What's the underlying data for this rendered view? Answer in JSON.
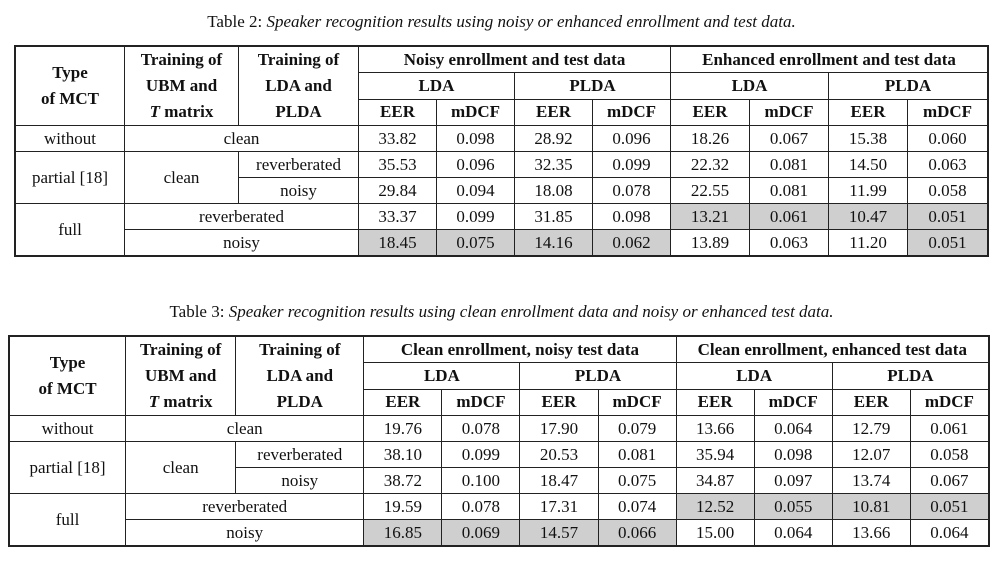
{
  "table2": {
    "caption_prefix": "Table 2:",
    "caption_text": "Speaker recognition results using noisy or enhanced enrollment and test data.",
    "headers": {
      "type_l1": "Type",
      "type_l2": "of MCT",
      "ubm_l1": "Training of",
      "ubm_l2": "UBM and",
      "ubm_l3_var": "T",
      "ubm_l3_rest": " matrix",
      "lda_l1": "Training of",
      "lda_l2": "LDA and",
      "lda_l3": "PLDA",
      "group1": "Noisy enrollment and test data",
      "group2": "Enhanced enrollment and test data",
      "lda": "LDA",
      "plda": "PLDA",
      "eer": "EER",
      "mdcf": "mDCF"
    },
    "rows": {
      "without": "without",
      "partial": "partial [18]",
      "full": "full",
      "clean": "clean",
      "reverberated": "reverberated",
      "noisy": "noisy"
    },
    "values": [
      [
        "33.82",
        "0.098",
        "28.92",
        "0.096",
        "18.26",
        "0.067",
        "15.38",
        "0.060"
      ],
      [
        "35.53",
        "0.096",
        "32.35",
        "0.099",
        "22.32",
        "0.081",
        "14.50",
        "0.063"
      ],
      [
        "29.84",
        "0.094",
        "18.08",
        "0.078",
        "22.55",
        "0.081",
        "11.99",
        "0.058"
      ],
      [
        "33.37",
        "0.099",
        "31.85",
        "0.098",
        "13.21",
        "0.061",
        "10.47",
        "0.051"
      ],
      [
        "18.45",
        "0.075",
        "14.16",
        "0.062",
        "13.89",
        "0.063",
        "11.20",
        "0.051"
      ]
    ]
  },
  "table3": {
    "caption_prefix": "Table 3:",
    "caption_text": "Speaker recognition results using clean enrollment data and noisy or enhanced test data.",
    "headers": {
      "type_l1": "Type",
      "type_l2": "of MCT",
      "ubm_l1": "Training of",
      "ubm_l2": "UBM and",
      "ubm_l3_var": "T",
      "ubm_l3_rest": " matrix",
      "lda_l1": "Training of",
      "lda_l2": "LDA and",
      "lda_l3": "PLDA",
      "group1": "Clean enrollment, noisy test data",
      "group2": "Clean enrollment, enhanced test data",
      "lda": "LDA",
      "plda": "PLDA",
      "eer": "EER",
      "mdcf": "mDCF"
    },
    "rows": {
      "without": "without",
      "partial": "partial [18]",
      "full": "full",
      "clean": "clean",
      "reverberated": "reverberated",
      "noisy": "noisy"
    },
    "values": [
      [
        "19.76",
        "0.078",
        "17.90",
        "0.079",
        "13.66",
        "0.064",
        "12.79",
        "0.061"
      ],
      [
        "38.10",
        "0.099",
        "20.53",
        "0.081",
        "35.94",
        "0.098",
        "12.07",
        "0.058"
      ],
      [
        "38.72",
        "0.100",
        "18.47",
        "0.075",
        "34.87",
        "0.097",
        "13.74",
        "0.067"
      ],
      [
        "19.59",
        "0.078",
        "17.31",
        "0.074",
        "12.52",
        "0.055",
        "10.81",
        "0.051"
      ],
      [
        "16.85",
        "0.069",
        "14.57",
        "0.066",
        "15.00",
        "0.064",
        "13.66",
        "0.064"
      ]
    ]
  }
}
